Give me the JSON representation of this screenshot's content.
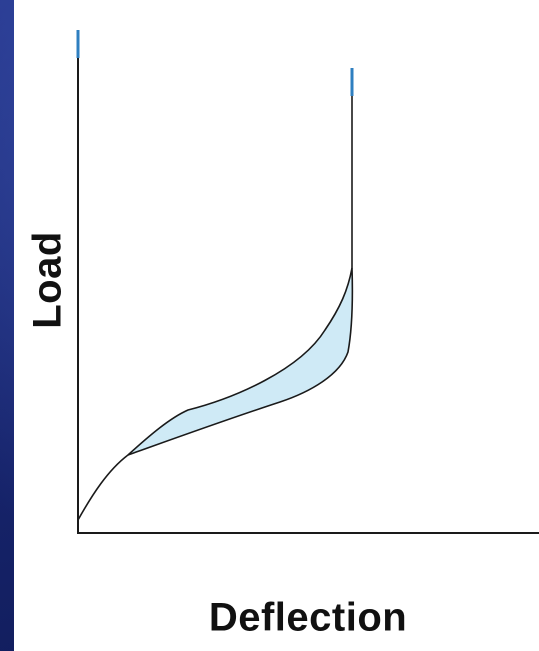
{
  "diagram": {
    "y_axis_label": "Load",
    "x_axis_label": "Deflection",
    "colors": {
      "slide_background": "#1b2a6e",
      "panel_background": "#ffffff",
      "curve_stroke": "#1a1a1a",
      "hysteresis_fill": "#cfeaf6",
      "axis_tip_accent": "#2f7fc0"
    }
  }
}
